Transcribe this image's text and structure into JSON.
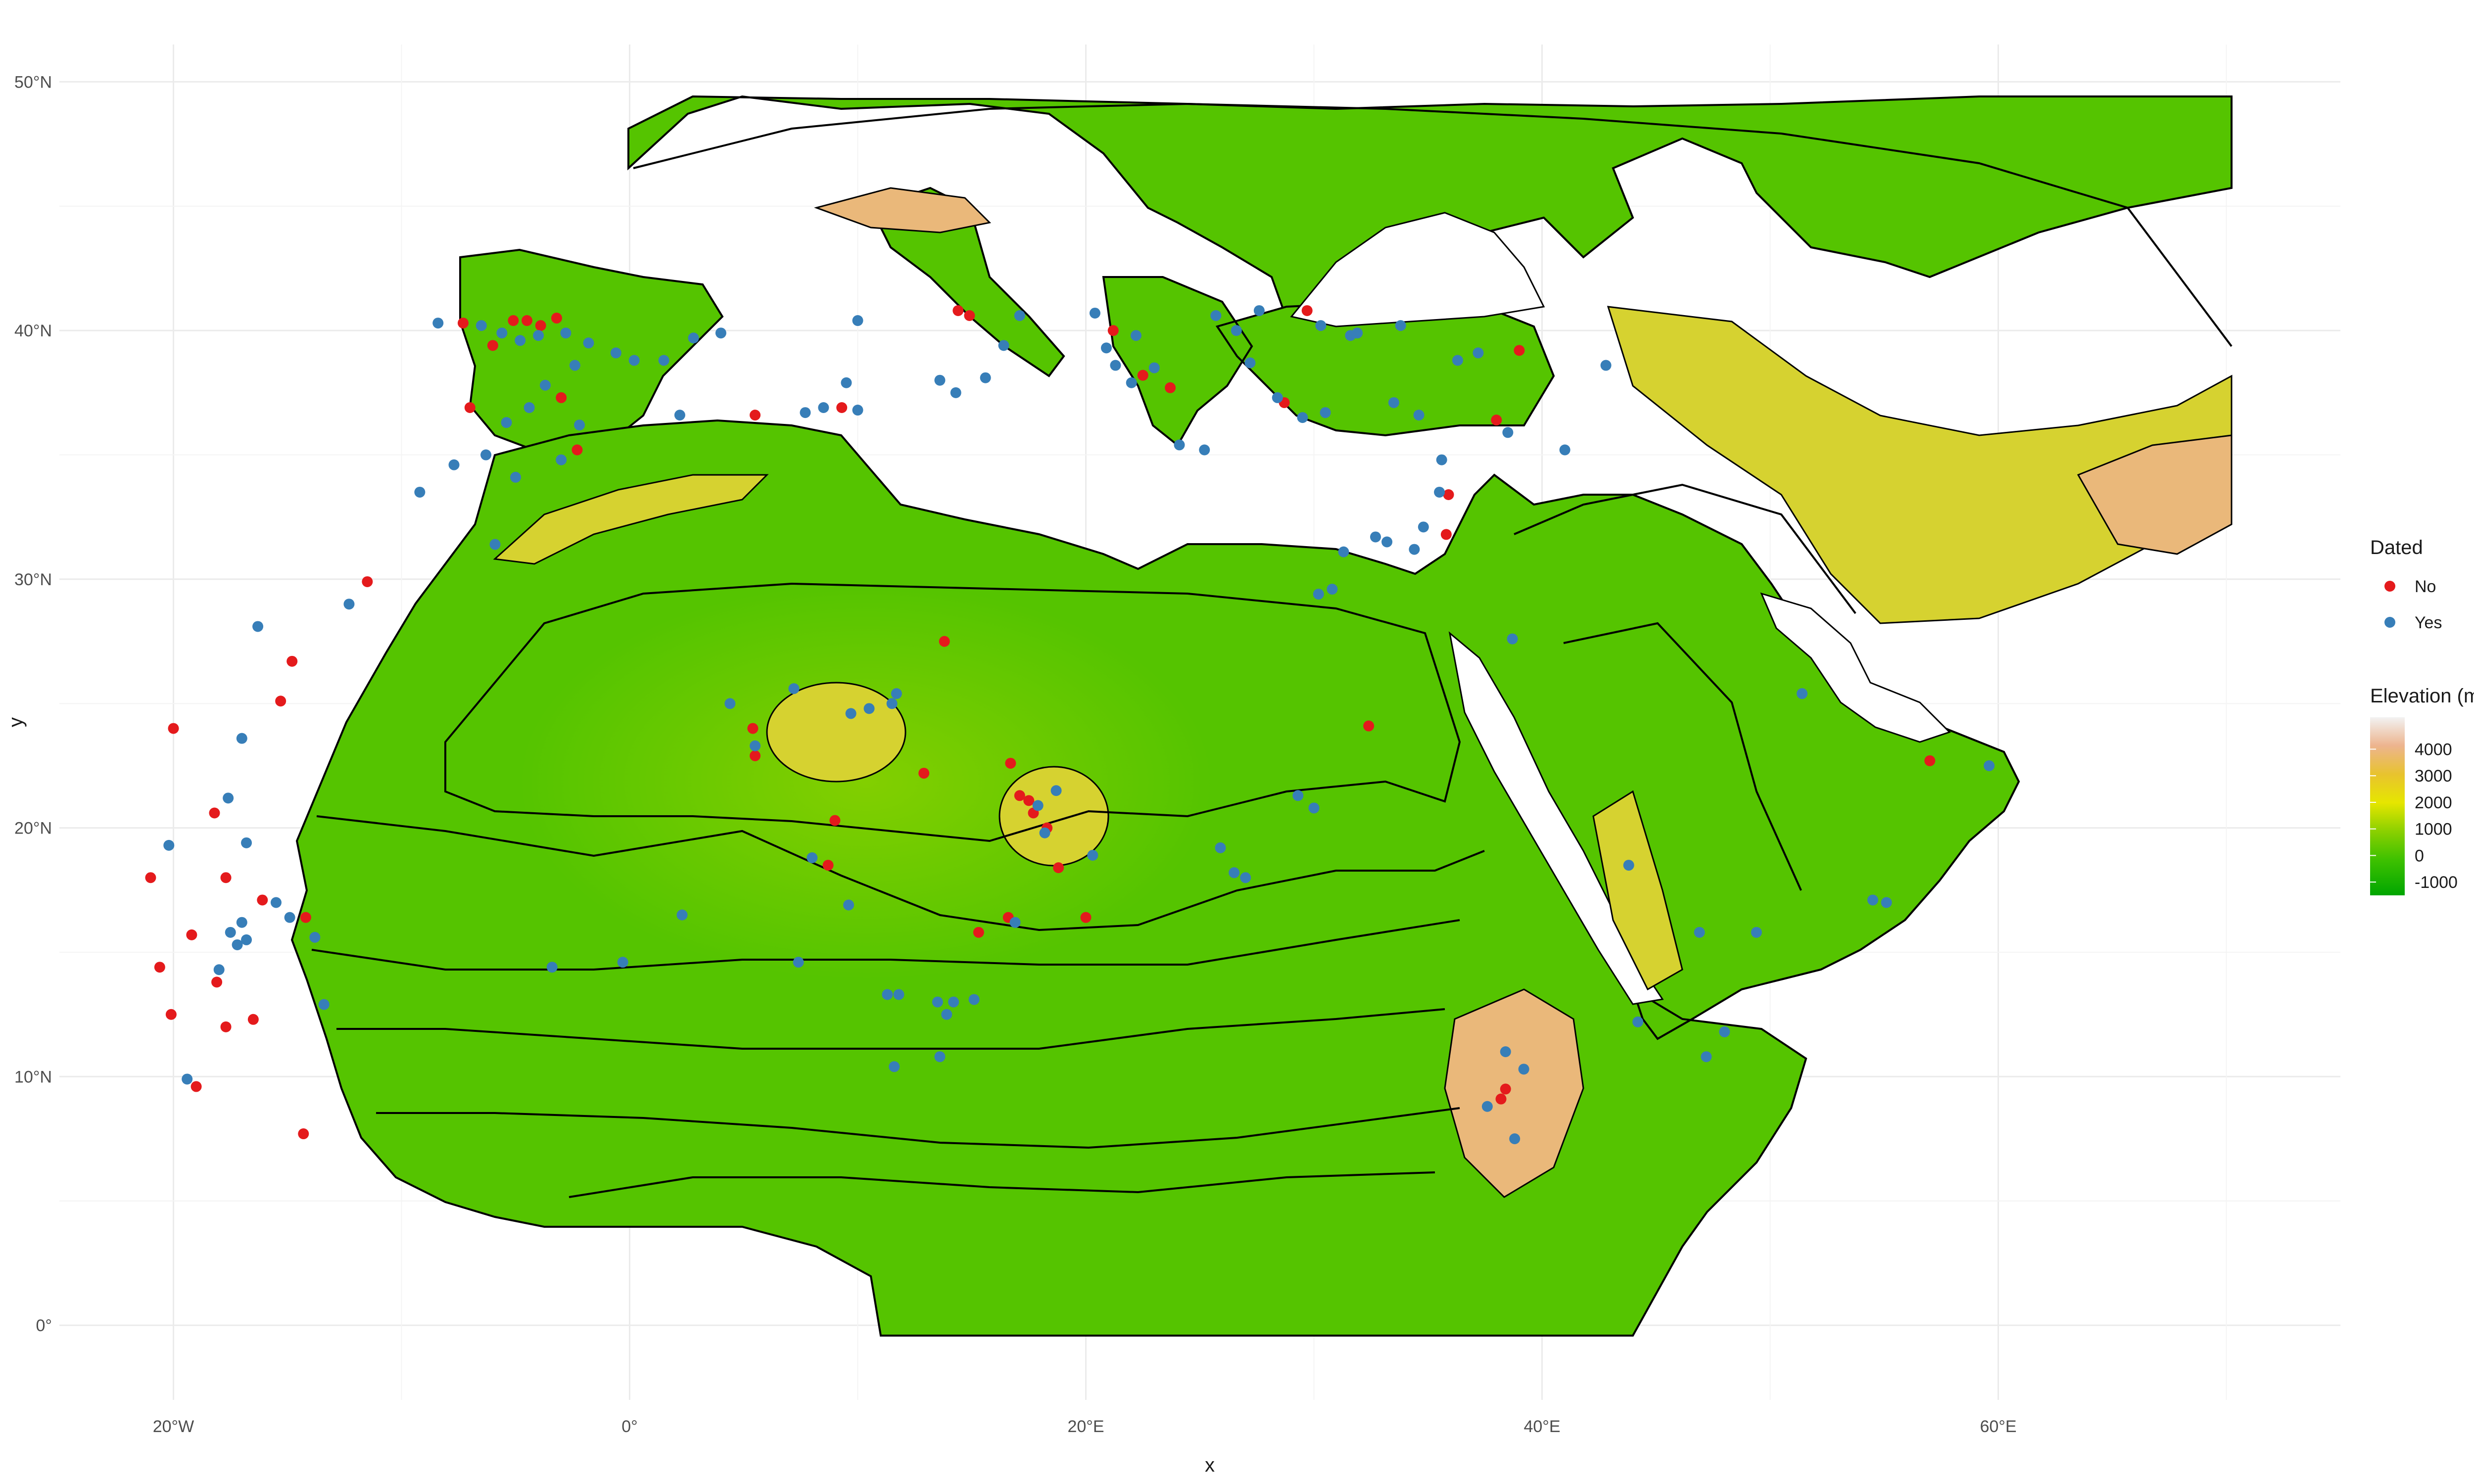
{
  "axes": {
    "x_title": "x",
    "y_title": "y",
    "x_ticks": [
      {
        "value": -20,
        "label": "20°W"
      },
      {
        "value": 0,
        "label": "0°"
      },
      {
        "value": 20,
        "label": "20°E"
      },
      {
        "value": 40,
        "label": "40°E"
      },
      {
        "value": 60,
        "label": "60°E"
      }
    ],
    "y_ticks": [
      {
        "value": 0,
        "label": "0°"
      },
      {
        "value": 10,
        "label": "10°N"
      },
      {
        "value": 20,
        "label": "20°N"
      },
      {
        "value": 30,
        "label": "30°N"
      },
      {
        "value": 40,
        "label": "40°N"
      },
      {
        "value": 50,
        "label": "50°N"
      }
    ],
    "xlim": [
      -25,
      75
    ],
    "ylim": [
      -3,
      51.5
    ]
  },
  "legend_dated": {
    "title": "Dated",
    "items": [
      {
        "label": "No",
        "color": "#e41a1c"
      },
      {
        "label": "Yes",
        "color": "#377eb8"
      }
    ]
  },
  "legend_elevation": {
    "title": "Elevation (m)",
    "labels": [
      "4000",
      "3000",
      "2000",
      "1000",
      "0",
      "-1000"
    ],
    "values": [
      4000,
      3000,
      2000,
      1000,
      0,
      -1000
    ],
    "colors": [
      "#00a600",
      "#3ec100",
      "#8bd000",
      "#e6e600",
      "#e8c32e",
      "#edb48e",
      "#f2f2f2"
    ]
  },
  "map": {
    "land_color": "#55c400",
    "highland_color": "#d6d230",
    "mountain_color": "#eab87a",
    "sea_color": "#ffffff"
  },
  "chart_data": {
    "type": "scatter",
    "xlabel": "x",
    "ylabel": "y",
    "xlim": [
      -25,
      75
    ],
    "ylim": [
      -3,
      51.5
    ],
    "grid": true,
    "legend_position": "right",
    "series": [
      {
        "name": "No",
        "color": "#e41a1c",
        "points": [
          [
            -7.3,
            40.3
          ],
          [
            -6.0,
            39.4
          ],
          [
            -5.1,
            40.4
          ],
          [
            -4.5,
            40.4
          ],
          [
            -3.9,
            40.2
          ],
          [
            -3.2,
            40.5
          ],
          [
            -7.0,
            36.9
          ],
          [
            -3.0,
            37.3
          ],
          [
            -2.3,
            35.2
          ],
          [
            5.5,
            36.6
          ],
          [
            9.3,
            36.9
          ],
          [
            14.4,
            40.8
          ],
          [
            14.9,
            40.6
          ],
          [
            22.5,
            38.2
          ],
          [
            23.7,
            37.7
          ],
          [
            21.2,
            40.0
          ],
          [
            29.7,
            40.8
          ],
          [
            28.7,
            37.1
          ],
          [
            38.0,
            36.4
          ],
          [
            39.0,
            39.2
          ],
          [
            35.9,
            33.4
          ],
          [
            35.8,
            31.8
          ],
          [
            32.4,
            24.1
          ],
          [
            57.0,
            22.7
          ],
          [
            -11.5,
            29.9
          ],
          [
            -14.8,
            26.7
          ],
          [
            -15.3,
            25.1
          ],
          [
            -20.0,
            24.0
          ],
          [
            -18.2,
            20.6
          ],
          [
            -17.7,
            18.0
          ],
          [
            -21.0,
            18.0
          ],
          [
            -19.2,
            15.7
          ],
          [
            -20.6,
            14.4
          ],
          [
            -20.1,
            12.5
          ],
          [
            -18.1,
            13.8
          ],
          [
            -17.7,
            12.0
          ],
          [
            -16.1,
            17.1
          ],
          [
            -14.2,
            16.4
          ],
          [
            -16.5,
            12.3
          ],
          [
            -19.0,
            9.6
          ],
          [
            -14.3,
            7.7
          ],
          [
            13.8,
            27.5
          ],
          [
            12.9,
            22.2
          ],
          [
            16.7,
            22.6
          ],
          [
            17.1,
            21.3
          ],
          [
            17.5,
            21.1
          ],
          [
            17.7,
            20.6
          ],
          [
            18.3,
            20.0
          ],
          [
            18.8,
            18.4
          ],
          [
            20.0,
            16.4
          ],
          [
            16.6,
            16.4
          ],
          [
            15.3,
            15.8
          ],
          [
            9.0,
            20.3
          ],
          [
            8.7,
            18.5
          ],
          [
            5.5,
            22.9
          ],
          [
            5.4,
            24.0
          ],
          [
            38.4,
            9.5
          ],
          [
            38.2,
            9.1
          ]
        ]
      },
      {
        "name": "Yes",
        "color": "#377eb8",
        "points": [
          [
            -8.4,
            40.3
          ],
          [
            -6.5,
            40.2
          ],
          [
            -5.6,
            39.9
          ],
          [
            -4.8,
            39.6
          ],
          [
            -4.0,
            39.8
          ],
          [
            -2.8,
            39.9
          ],
          [
            -1.8,
            39.5
          ],
          [
            -0.6,
            39.1
          ],
          [
            0.2,
            38.8
          ],
          [
            1.5,
            38.8
          ],
          [
            2.8,
            39.7
          ],
          [
            4.0,
            39.9
          ],
          [
            -2.4,
            38.6
          ],
          [
            -3.7,
            37.8
          ],
          [
            -4.4,
            36.9
          ],
          [
            -5.4,
            36.3
          ],
          [
            -2.2,
            36.2
          ],
          [
            -6.3,
            35.0
          ],
          [
            -7.7,
            34.6
          ],
          [
            -9.2,
            33.5
          ],
          [
            -5.0,
            34.1
          ],
          [
            -3.0,
            34.8
          ],
          [
            -5.9,
            31.4
          ],
          [
            2.2,
            36.6
          ],
          [
            7.7,
            36.7
          ],
          [
            8.5,
            36.9
          ],
          [
            10.0,
            36.8
          ],
          [
            9.5,
            37.9
          ],
          [
            10.0,
            40.4
          ],
          [
            13.6,
            38.0
          ],
          [
            14.3,
            37.5
          ],
          [
            15.6,
            38.1
          ],
          [
            16.4,
            39.4
          ],
          [
            17.1,
            40.6
          ],
          [
            20.4,
            40.7
          ],
          [
            20.9,
            39.3
          ],
          [
            21.3,
            38.6
          ],
          [
            22.0,
            37.9
          ],
          [
            22.2,
            39.8
          ],
          [
            23.0,
            38.5
          ],
          [
            24.1,
            35.4
          ],
          [
            25.2,
            35.2
          ],
          [
            26.6,
            40.0
          ],
          [
            27.2,
            38.7
          ],
          [
            28.4,
            37.3
          ],
          [
            29.5,
            36.5
          ],
          [
            30.3,
            40.2
          ],
          [
            31.6,
            39.8
          ],
          [
            33.5,
            37.1
          ],
          [
            34.6,
            36.6
          ],
          [
            35.6,
            34.8
          ],
          [
            35.5,
            33.5
          ],
          [
            34.8,
            32.1
          ],
          [
            34.4,
            31.2
          ],
          [
            33.2,
            31.5
          ],
          [
            31.3,
            31.1
          ],
          [
            30.2,
            29.4
          ],
          [
            30.8,
            29.6
          ],
          [
            38.7,
            27.6
          ],
          [
            42.8,
            38.6
          ],
          [
            41.0,
            35.2
          ],
          [
            38.5,
            35.9
          ],
          [
            43.8,
            18.5
          ],
          [
            51.4,
            25.4
          ],
          [
            59.6,
            22.5
          ],
          [
            54.5,
            17.1
          ],
          [
            55.1,
            17.0
          ],
          [
            46.9,
            15.8
          ],
          [
            49.4,
            15.8
          ],
          [
            48.0,
            11.8
          ],
          [
            44.2,
            12.2
          ],
          [
            47.2,
            10.8
          ],
          [
            38.4,
            11.0
          ],
          [
            37.6,
            8.8
          ],
          [
            39.2,
            10.3
          ],
          [
            38.8,
            7.5
          ],
          [
            29.3,
            21.3
          ],
          [
            30.0,
            20.8
          ],
          [
            25.9,
            19.2
          ],
          [
            26.5,
            18.2
          ],
          [
            27.0,
            18.0
          ],
          [
            18.7,
            21.5
          ],
          [
            17.9,
            20.9
          ],
          [
            18.2,
            19.8
          ],
          [
            20.3,
            18.9
          ],
          [
            16.9,
            16.2
          ],
          [
            11.3,
            13.3
          ],
          [
            11.8,
            13.3
          ],
          [
            13.5,
            13.0
          ],
          [
            14.2,
            13.0
          ],
          [
            15.1,
            13.1
          ],
          [
            13.9,
            12.5
          ],
          [
            11.6,
            10.4
          ],
          [
            13.6,
            10.8
          ],
          [
            -13.4,
            12.9
          ],
          [
            -18.0,
            14.3
          ],
          [
            -17.2,
            15.3
          ],
          [
            -16.8,
            15.5
          ],
          [
            -17.5,
            15.8
          ],
          [
            -17.0,
            16.2
          ],
          [
            -15.5,
            17.0
          ],
          [
            -14.9,
            16.4
          ],
          [
            -13.8,
            15.6
          ],
          [
            -17.6,
            21.2
          ],
          [
            -20.2,
            19.3
          ],
          [
            -16.8,
            19.4
          ],
          [
            -17.0,
            23.6
          ],
          [
            -12.3,
            29.0
          ],
          [
            -16.3,
            28.1
          ],
          [
            -19.4,
            9.9
          ],
          [
            2.3,
            16.5
          ],
          [
            -0.3,
            14.6
          ],
          [
            -3.4,
            14.4
          ],
          [
            7.4,
            14.6
          ],
          [
            8.0,
            18.8
          ],
          [
            9.6,
            16.9
          ],
          [
            9.7,
            24.6
          ],
          [
            11.5,
            25.0
          ],
          [
            10.5,
            24.8
          ],
          [
            11.7,
            25.4
          ],
          [
            4.4,
            25.0
          ],
          [
            5.5,
            23.3
          ],
          [
            7.2,
            25.6
          ],
          [
            32.7,
            31.7
          ],
          [
            36.3,
            38.8
          ],
          [
            37.2,
            39.1
          ],
          [
            31.9,
            39.9
          ],
          [
            33.8,
            40.2
          ],
          [
            30.5,
            36.7
          ],
          [
            27.6,
            40.8
          ],
          [
            25.7,
            40.6
          ]
        ]
      }
    ]
  }
}
